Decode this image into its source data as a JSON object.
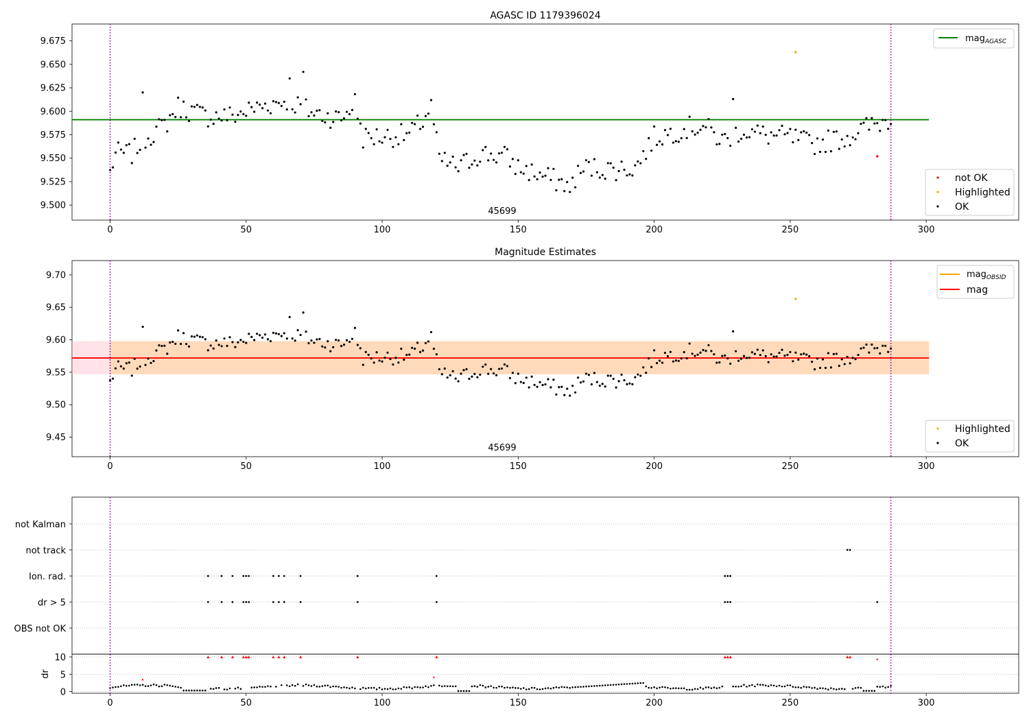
{
  "colors": {
    "ok": "#000000",
    "highlighted": "#ffa500",
    "not_ok": "#ff0000",
    "agasc_line": "#008000",
    "obsid_line": "#ffa500",
    "mag_line": "#ff0000",
    "vline": "#800080",
    "band_outer": "#ffc0cb",
    "band_inner": "#ffd5a6"
  },
  "chart_data": [
    {
      "type": "scatter",
      "title": "AGASC ID 1179396024",
      "annotation": "45699",
      "xlim": [
        -14,
        334
      ],
      "ylim": [
        9.484,
        9.693
      ],
      "xticks": [
        0,
        50,
        100,
        150,
        200,
        250,
        300
      ],
      "yticks": [
        9.5,
        9.525,
        9.55,
        9.575,
        9.6,
        9.625,
        9.65,
        9.675
      ],
      "ytick_labels": [
        "9.500",
        "9.525",
        "9.550",
        "9.575",
        "9.600",
        "9.625",
        "9.650",
        "9.675"
      ],
      "grid": false,
      "vlines": [
        0,
        287
      ],
      "hline": {
        "name": "mag_AGASC",
        "label_main": "mag",
        "label_sub": "AGASC",
        "y": 9.591,
        "x_range": [
          -14,
          301
        ]
      },
      "legend_top": [
        {
          "kind": "line",
          "label_main": "mag",
          "label_sub": "AGASC",
          "color": "#008000"
        }
      ],
      "legend_bottom": [
        {
          "label": "not OK",
          "color": "#ff0000"
        },
        {
          "label": "Highlighted",
          "color": "#ffa500"
        },
        {
          "label": "OK",
          "color": "#000000"
        }
      ],
      "highlighted": [
        [
          252,
          9.663
        ]
      ],
      "not_ok": [
        [
          282,
          9.552
        ]
      ]
    },
    {
      "type": "scatter",
      "title": "Magnitude Estimates",
      "annotation": "45699",
      "xlim": [
        -14,
        334
      ],
      "ylim": [
        9.42,
        9.722
      ],
      "xticks": [
        0,
        50,
        100,
        150,
        200,
        250,
        300
      ],
      "yticks": [
        9.45,
        9.5,
        9.55,
        9.6,
        9.65,
        9.7
      ],
      "ytick_labels": [
        "9.45",
        "9.50",
        "9.55",
        "9.60",
        "9.65",
        "9.70"
      ],
      "grid": false,
      "vlines": [
        0,
        287
      ],
      "mag": 9.572,
      "band_outer": [
        9.547,
        9.598
      ],
      "band_inner": [
        9.547,
        9.598
      ],
      "band_x_range": [
        -14,
        301
      ],
      "legend_top": [
        {
          "kind": "line",
          "label_main": "mag",
          "label_sub": "OBSID",
          "color": "#ffa500"
        },
        {
          "kind": "line",
          "label_main": "mag",
          "label_sub": "",
          "color": "#ff0000"
        }
      ],
      "legend_bottom": [
        {
          "label": "Highlighted",
          "color": "#ffa500"
        },
        {
          "label": "OK",
          "color": "#000000"
        }
      ],
      "highlighted": [
        [
          252,
          9.663
        ]
      ]
    },
    {
      "type": "scatter",
      "title": "",
      "xlim": [
        -14,
        334
      ],
      "categories": [
        "not Kalman",
        "not track",
        "Ion. rad.",
        "dr > 5",
        "OBS not OK"
      ],
      "flags": {
        "not track": [
          271,
          272
        ],
        "Ion. rad.": [
          36,
          41,
          45,
          49,
          50,
          51,
          60,
          62,
          64,
          70,
          91,
          120,
          226,
          227,
          228
        ],
        "dr > 5": [
          36,
          41,
          45,
          49,
          50,
          51,
          60,
          62,
          64,
          70,
          91,
          120,
          226,
          227,
          228,
          282
        ]
      },
      "vlines": [
        0,
        287
      ],
      "grid": true
    },
    {
      "type": "scatter",
      "title": "",
      "ylabel": "dr",
      "xlim": [
        -14,
        334
      ],
      "ylim": [
        -0.5,
        10.8
      ],
      "xticks": [
        0,
        50,
        100,
        150,
        200,
        250,
        300
      ],
      "yticks": [
        0,
        5,
        10
      ],
      "vlines": [
        0,
        287
      ],
      "grid": true,
      "clipped": [
        36,
        41,
        45,
        49,
        50,
        51,
        60,
        62,
        64,
        70,
        91,
        120,
        226,
        227,
        228,
        271,
        272
      ],
      "red_points": [
        [
          12,
          3.4
        ],
        [
          119,
          4.1
        ],
        [
          282,
          9.3
        ]
      ]
    }
  ]
}
